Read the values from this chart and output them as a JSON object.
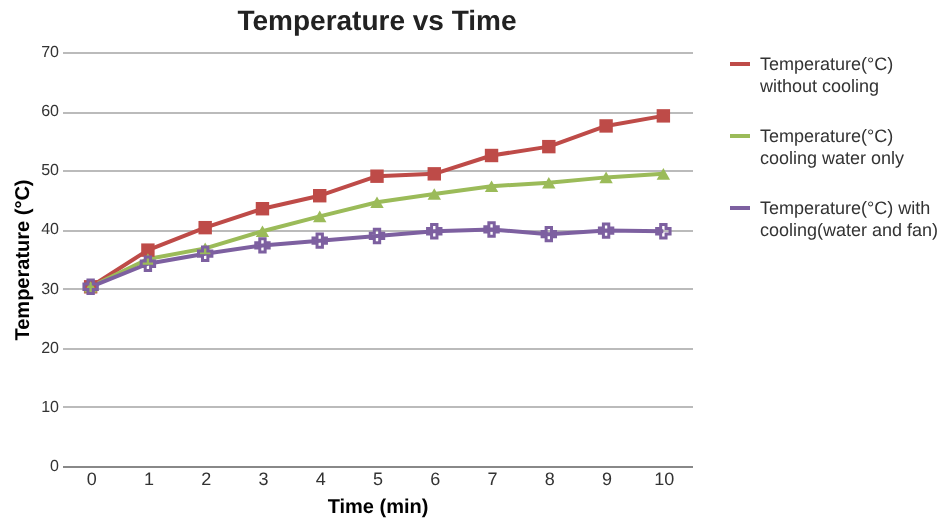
{
  "chart_data": {
    "type": "line",
    "title": "Temperature vs Time",
    "xlabel": "Time (min)",
    "ylabel": "Temperature (°C)",
    "categories": [
      "0",
      "1",
      "2",
      "3",
      "4",
      "5",
      "6",
      "7",
      "8",
      "9",
      "10"
    ],
    "series": [
      {
        "name": "Temperature(°C) without cooling",
        "color": "#be4b48",
        "marker": "square",
        "values": [
          30.3,
          36.5,
          40.3,
          43.5,
          45.7,
          49,
          49.4,
          52.5,
          54,
          57.5,
          59.2
        ]
      },
      {
        "name": "Temperature(°C) cooling water only",
        "color": "#9bbb59",
        "marker": "triangle",
        "values": [
          30.3,
          35,
          36.8,
          39.7,
          42.2,
          44.6,
          46,
          47.3,
          47.9,
          48.8,
          49.4
        ]
      },
      {
        "name": "Temperature(°C) with cooling(water and fan)",
        "color": "#7d60a0",
        "marker": "cross",
        "values": [
          30.3,
          34.2,
          35.9,
          37.3,
          38.1,
          38.9,
          39.7,
          40,
          39.2,
          39.8,
          39.7
        ]
      }
    ],
    "ylim": [
      0,
      70
    ],
    "yticks": [
      0,
      10,
      20,
      30,
      40,
      50,
      60,
      70
    ],
    "grid": "y",
    "legend": "right"
  }
}
